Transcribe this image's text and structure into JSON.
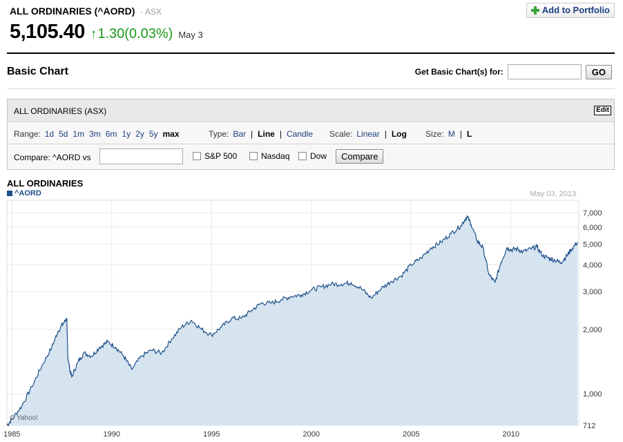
{
  "header": {
    "name": "ALL ORDINARIES (^AORD)",
    "exchange": "- ASX",
    "price": "5,105.40",
    "change": "1.30(0.03%)",
    "date": "May 3",
    "add_portfolio": "Add to Portfolio"
  },
  "basic_chart": {
    "title": "Basic Chart",
    "get_label": "Get Basic Chart(s) for:",
    "go_label": "GO"
  },
  "panel": {
    "title": "ALL ORDINARIES (ASX)",
    "edit_label": "Edit",
    "range_label": "Range:",
    "ranges": [
      "1d",
      "5d",
      "1m",
      "3m",
      "6m",
      "1y",
      "2y",
      "5y",
      "max"
    ],
    "range_selected": "max",
    "type_label": "Type:",
    "types": [
      "Bar",
      "Line",
      "Candle"
    ],
    "type_selected": "Line",
    "scale_label": "Scale:",
    "scales": [
      "Linear",
      "Log"
    ],
    "scale_selected": "Log",
    "size_label": "Size:",
    "sizes": [
      "M",
      "L"
    ],
    "size_selected": "L",
    "compare_label": "Compare:  ^AORD vs",
    "compare_options": [
      "S&P 500",
      "Nasdaq",
      "Dow"
    ],
    "compare_button": "Compare"
  },
  "chart_data": {
    "type": "area",
    "title": "ALL ORDINARIES",
    "legend": "^AORD",
    "date_label": "May 03, 2013",
    "watermark": "© Yahoo!",
    "scale": "log",
    "ylim": [
      712,
      8000
    ],
    "yticks": [
      712,
      1000,
      2000,
      3000,
      4000,
      5000,
      6000,
      7000
    ],
    "ytick_labels": [
      "712",
      "1,000",
      "2,000",
      "3,000",
      "4,000",
      "5,000",
      "6,000",
      "7,000"
    ],
    "xlim": [
      1984.75,
      2013.4
    ],
    "xticks": [
      1985,
      1990,
      1995,
      2000,
      2005,
      2010
    ],
    "xtick_labels": [
      "1985",
      "1990",
      "1995",
      "2000",
      "2005",
      "2010"
    ],
    "grid": true,
    "series": [
      {
        "name": "^AORD",
        "x": [
          1984.75,
          1985.0,
          1985.5,
          1986.0,
          1986.5,
          1987.0,
          1987.3,
          1987.6,
          1987.75,
          1987.8,
          1987.9,
          1988.0,
          1988.3,
          1988.6,
          1989.0,
          1989.4,
          1989.8,
          1990.2,
          1990.6,
          1991.0,
          1991.5,
          1992.0,
          1992.5,
          1993.0,
          1993.5,
          1994.0,
          1994.5,
          1995.0,
          1995.5,
          1996.0,
          1996.5,
          1997.0,
          1997.5,
          1998.0,
          1998.5,
          1999.0,
          1999.5,
          2000.0,
          2000.5,
          2001.0,
          2001.5,
          2002.0,
          2002.5,
          2003.0,
          2003.5,
          2004.0,
          2004.5,
          2005.0,
          2005.5,
          2006.0,
          2006.5,
          2007.0,
          2007.5,
          2007.8,
          2008.0,
          2008.3,
          2008.6,
          2008.9,
          2009.2,
          2009.5,
          2009.8,
          2010.0,
          2010.3,
          2010.6,
          2011.0,
          2011.3,
          2011.6,
          2011.9,
          2012.2,
          2012.5,
          2012.8,
          2013.0,
          2013.34
        ],
        "values": [
          712,
          760,
          880,
          1080,
          1350,
          1650,
          1950,
          2150,
          2250,
          1500,
          1300,
          1200,
          1400,
          1550,
          1500,
          1650,
          1750,
          1650,
          1500,
          1300,
          1500,
          1600,
          1550,
          1800,
          2050,
          2200,
          2000,
          1880,
          2050,
          2250,
          2250,
          2450,
          2650,
          2650,
          2750,
          2850,
          2900,
          3050,
          3150,
          3250,
          3250,
          3300,
          3100,
          2800,
          3100,
          3350,
          3550,
          4000,
          4300,
          4800,
          5100,
          5600,
          6100,
          6750,
          6200,
          5200,
          4800,
          3600,
          3300,
          4100,
          4800,
          4700,
          4750,
          4600,
          4750,
          4850,
          4400,
          4300,
          4200,
          4100,
          4400,
          4700,
          5105
        ]
      }
    ]
  }
}
